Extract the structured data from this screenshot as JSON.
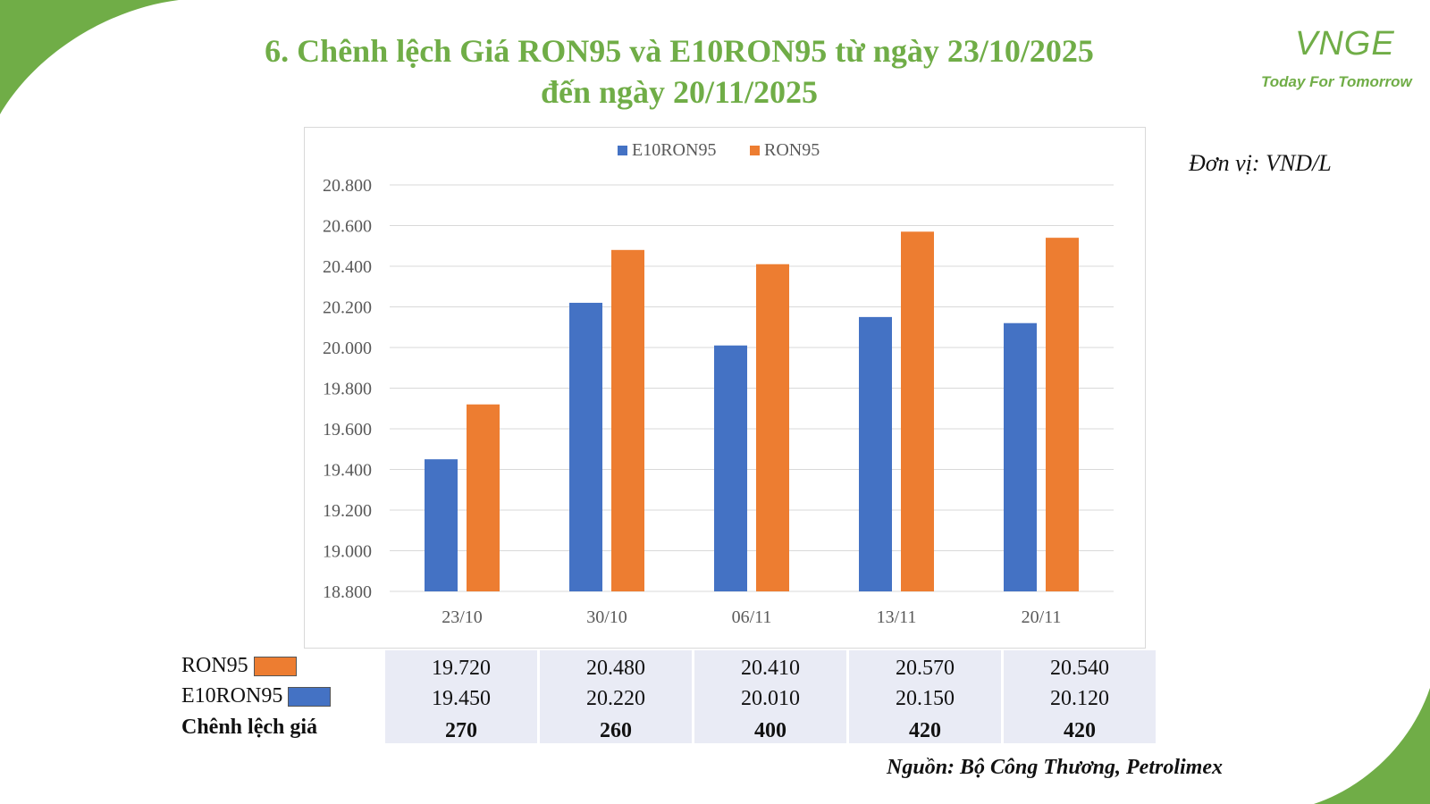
{
  "title": {
    "line1": "6. Chênh lệch Giá RON95 và E10RON95 từ ngày 23/10/2025",
    "line2": "đến ngày 20/11/2025"
  },
  "logo": {
    "mark": "VNGE",
    "tagline": "Today For Tomorrow"
  },
  "unit": "Đơn vị: VND/L",
  "source": "Nguồn: Bộ Công Thương, Petrolimex",
  "colors": {
    "brand_green": "#70ad47",
    "e10": "#4472c4",
    "ron95": "#ed7d31"
  },
  "chart_data": {
    "type": "bar",
    "categories": [
      "23/10",
      "30/10",
      "06/11",
      "13/11",
      "20/11"
    ],
    "series": [
      {
        "name": "E10RON95",
        "values": [
          19450,
          20220,
          20010,
          20150,
          20120
        ],
        "color": "#4472c4"
      },
      {
        "name": "RON95",
        "values": [
          19720,
          20480,
          20410,
          20570,
          20540
        ],
        "color": "#ed7d31"
      }
    ],
    "ylim": [
      18800,
      20800
    ],
    "yticks": [
      "20.800",
      "20.600",
      "20.400",
      "20.200",
      "20.000",
      "19.800",
      "19.600",
      "19.400",
      "19.200",
      "19.000",
      "18.800"
    ],
    "ytick_values": [
      20800,
      20600,
      20400,
      20200,
      20000,
      19800,
      19600,
      19400,
      19200,
      19000,
      18800
    ],
    "legend_position": "top-center",
    "grid": true
  },
  "table": {
    "rows": [
      {
        "label": "RON95",
        "swatch": "#ed7d31",
        "values": [
          "19.720",
          "20.480",
          "20.410",
          "20.570",
          "20.540"
        ]
      },
      {
        "label": "E10RON95",
        "swatch": "#4472c4",
        "values": [
          "19.450",
          "20.220",
          "20.010",
          "20.150",
          "20.120"
        ]
      },
      {
        "label": "Chênh lệch giá",
        "values": [
          "270",
          "260",
          "400",
          "420",
          "420"
        ]
      }
    ]
  }
}
